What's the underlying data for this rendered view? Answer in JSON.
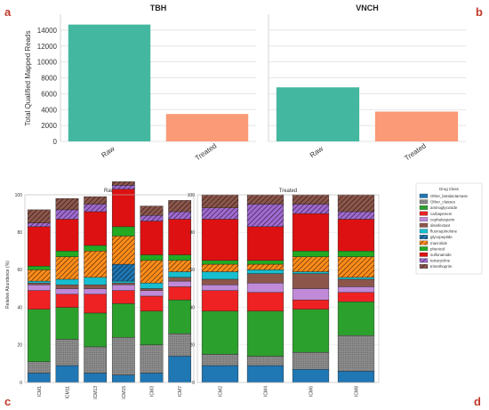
{
  "panel_labels": {
    "a": "a",
    "b": "b",
    "c": "c",
    "d": "d"
  },
  "chart_data": [
    {
      "type": "bar",
      "panel": "a",
      "title": "TBH",
      "ylabel": "Total Qualified Mapped Reads",
      "categories": [
        "Raw",
        "Treated"
      ],
      "values": [
        14700,
        3450
      ],
      "colors": [
        "#44b7a0",
        "#fa9a76"
      ],
      "ylim": [
        0,
        16000
      ],
      "yticks": [
        0,
        2000,
        4000,
        6000,
        8000,
        10000,
        12000,
        14000
      ],
      "grid": true
    },
    {
      "type": "bar",
      "panel": "b",
      "title": "VNCH",
      "categories": [
        "Raw",
        "Treated"
      ],
      "values": [
        6800,
        3750
      ],
      "colors": [
        "#44b7a0",
        "#fa9a76"
      ],
      "ylim": [
        0,
        16000
      ],
      "grid": true
    },
    {
      "type": "bar",
      "stacked": true,
      "panel": "c",
      "title": "Raw",
      "ylabel": "Relative Abundance (%)",
      "ylim": [
        0,
        100
      ],
      "yticks": [
        0,
        20,
        40,
        60,
        80,
        100
      ],
      "categories": [
        "ICM1",
        "ICM11",
        "ICM13",
        "ICM15",
        "ICM3",
        "ICM7"
      ],
      "series": [
        {
          "name": "Other_betalactamase",
          "values": [
            5,
            9,
            5,
            4,
            5,
            14
          ]
        },
        {
          "name": "Other_classes",
          "values": [
            6,
            14,
            14,
            20,
            15,
            12
          ]
        },
        {
          "name": "aminoglycoside",
          "values": [
            28,
            17,
            18,
            18,
            18,
            18
          ]
        },
        {
          "name": "carbapenem",
          "values": [
            10,
            7,
            10,
            7,
            8,
            7
          ]
        },
        {
          "name": "cephalosporin",
          "values": [
            3,
            3,
            3,
            3,
            3,
            3
          ]
        },
        {
          "name": "disinfectant",
          "values": [
            1,
            2,
            2,
            1,
            1,
            2
          ]
        },
        {
          "name": "fluoroquinolone",
          "values": [
            1,
            3,
            4,
            1,
            3,
            3
          ]
        },
        {
          "name": "glycopeptide",
          "values": [
            0,
            0,
            0,
            9,
            0,
            0
          ]
        },
        {
          "name": "macrolide",
          "values": [
            6,
            12,
            14,
            15,
            12,
            6
          ]
        },
        {
          "name": "phenicol",
          "values": [
            2,
            3,
            3,
            5,
            3,
            3
          ]
        },
        {
          "name": "sulfonamide",
          "values": [
            21,
            17,
            18,
            20,
            18,
            19
          ]
        },
        {
          "name": "tetracycline",
          "values": [
            2,
            5,
            4,
            2,
            3,
            4
          ]
        },
        {
          "name": "trimethoprim",
          "values": [
            7,
            6,
            4,
            2,
            5,
            6
          ]
        }
      ]
    },
    {
      "type": "bar",
      "stacked": true,
      "panel": "d",
      "title": "Treated",
      "ylim": [
        0,
        100
      ],
      "yticks": [
        0,
        20,
        40,
        60,
        80,
        100
      ],
      "categories": [
        "ICM2",
        "ICM4",
        "ICM6",
        "ICM8"
      ],
      "series": [
        {
          "name": "Other_betalactamase",
          "values": [
            9,
            9,
            7,
            6
          ]
        },
        {
          "name": "Other_classes",
          "values": [
            6,
            5,
            9,
            19
          ]
        },
        {
          "name": "aminoglycoside",
          "values": [
            23,
            24,
            23,
            18
          ]
        },
        {
          "name": "carbapenem",
          "values": [
            11,
            10,
            5,
            5
          ]
        },
        {
          "name": "cephalosporin",
          "values": [
            3,
            5,
            6,
            3
          ]
        },
        {
          "name": "disinfectant",
          "values": [
            3,
            5,
            8,
            4
          ]
        },
        {
          "name": "fluoroquinolone",
          "values": [
            4,
            2,
            1,
            1
          ]
        },
        {
          "name": "glycopeptide",
          "values": [
            0,
            0,
            0,
            0
          ]
        },
        {
          "name": "macrolide",
          "values": [
            4,
            3,
            8,
            11
          ]
        },
        {
          "name": "phenicol",
          "values": [
            2,
            2,
            3,
            3
          ]
        },
        {
          "name": "sulfonamide",
          "values": [
            22,
            18,
            20,
            17
          ]
        },
        {
          "name": "tetracycline",
          "values": [
            6,
            12,
            5,
            4
          ]
        },
        {
          "name": "trimethoprim",
          "values": [
            7,
            5,
            5,
            9
          ]
        }
      ]
    }
  ],
  "legend": {
    "title": "Drug Class",
    "items": [
      {
        "label": "Other_betalactamase",
        "color": "#1f77b4",
        "pattern": "none"
      },
      {
        "label": "Other_classes",
        "color": "#8c8c8c",
        "pattern": "dots"
      },
      {
        "label": "aminoglycoside",
        "color": "#2ca02c",
        "pattern": "none"
      },
      {
        "label": "carbapenem",
        "color": "#ee2222",
        "pattern": "none"
      },
      {
        "label": "cephalosporin",
        "color": "#c08ad8",
        "pattern": "none"
      },
      {
        "label": "disinfectant",
        "color": "#8c564b",
        "pattern": "none"
      },
      {
        "label": "fluoroquinolone",
        "color": "#17becf",
        "pattern": "none"
      },
      {
        "label": "glycopeptide",
        "color": "#1f77b4",
        "pattern": "hatch"
      },
      {
        "label": "macrolide",
        "color": "#ff8c1a",
        "pattern": "hatch"
      },
      {
        "label": "phenicol",
        "color": "#22aa22",
        "pattern": "none"
      },
      {
        "label": "sulfonamide",
        "color": "#dd1111",
        "pattern": "none"
      },
      {
        "label": "tetracycline",
        "color": "#a06ad0",
        "pattern": "hatch"
      },
      {
        "label": "trimethoprim",
        "color": "#8c564b",
        "pattern": "hatch"
      }
    ]
  }
}
